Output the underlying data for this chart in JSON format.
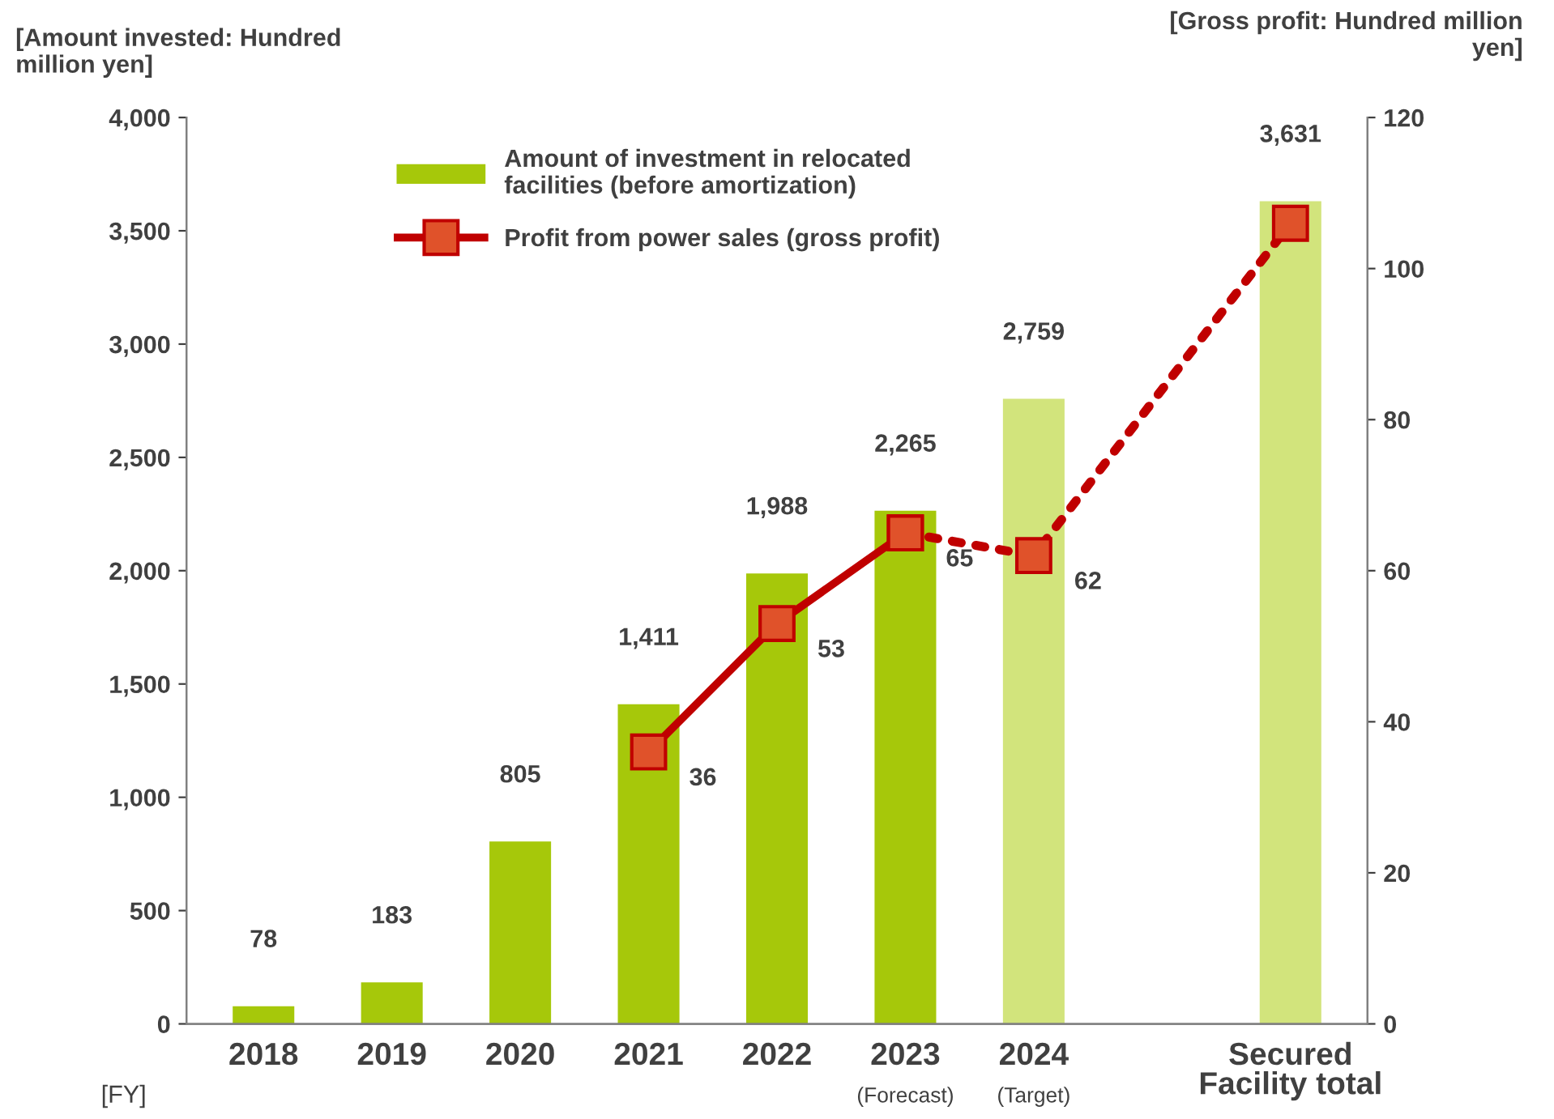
{
  "chart_data": {
    "type": "bar",
    "categories": [
      "2018",
      "2019",
      "2020",
      "2021",
      "2022",
      "2023\n(Forecast)",
      "2024\n(Target)",
      null,
      "Secured\nFacility total"
    ],
    "ylabel": "[Amount invested: Hundred million yen]",
    "y2label": "[Gross profit: Hundred million yen]",
    "xlabel": "[FY]",
    "ylim": [
      0,
      4000
    ],
    "yticks": [
      {
        "value": 0,
        "label": "0"
      },
      {
        "value": 500,
        "label": "500"
      },
      {
        "value": 1000,
        "label": "1,000"
      },
      {
        "value": 1500,
        "label": "1,500"
      },
      {
        "value": 2000,
        "label": "2,000"
      },
      {
        "value": 2500,
        "label": "2,500"
      },
      {
        "value": 3000,
        "label": "3,000"
      },
      {
        "value": 3500,
        "label": "3,500"
      },
      {
        "value": 4000,
        "label": "4,000"
      }
    ],
    "y2lim": [
      0,
      120
    ],
    "y2ticks": [
      0,
      20,
      40,
      60,
      80,
      100,
      120
    ],
    "series": [
      {
        "name": "Amount of investment in relocated facilities (before amortization)",
        "color": "#a6c80a",
        "values": [
          78,
          183,
          805,
          1411,
          1988,
          2265,
          null,
          null,
          null
        ],
        "value_labels": [
          "78",
          "183",
          "805",
          "1,411",
          "1,988",
          "2,265",
          null,
          null,
          null
        ]
      },
      {
        "color": "#d2e47c",
        "values": [
          null,
          null,
          null,
          null,
          null,
          null,
          2759,
          null,
          3631
        ],
        "value_labels": [
          null,
          null,
          null,
          null,
          null,
          null,
          "2,759",
          null,
          "3,631"
        ]
      },
      {
        "name": "Profit from power sales (gross profit)",
        "type": "line",
        "axis": "y2",
        "color": "#c00000",
        "marker": "square",
        "line_style": "solid",
        "values": [
          null,
          null,
          null,
          36,
          53,
          65,
          null,
          null,
          null
        ],
        "value_labels": [
          null,
          null,
          null,
          "36",
          "53",
          "65",
          null,
          null,
          null
        ]
      },
      {
        "type": "line",
        "axis": "y2",
        "color": "#c00000",
        "marker": "square",
        "line_style": "dotted",
        "values": [
          null,
          null,
          null,
          null,
          null,
          65,
          62,
          null,
          106
        ],
        "value_labels": [
          null,
          null,
          null,
          null,
          null,
          null,
          "62",
          null,
          null
        ]
      }
    ],
    "legend": "top left",
    "grid": false
  }
}
